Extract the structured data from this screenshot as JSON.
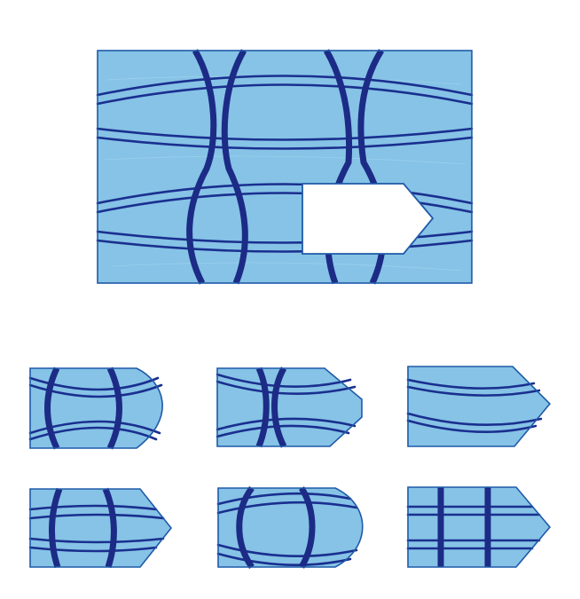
{
  "puzzle": {
    "main_panel": {
      "pattern": "crossing-wavy-lines",
      "missing_piece": "pentagon-arrow"
    },
    "options": [
      {
        "id": "option-1",
        "pattern": "vertical-bows-wave-horizontals"
      },
      {
        "id": "option-2",
        "pattern": "pinched-verticals-wave-horizontals"
      },
      {
        "id": "option-3",
        "pattern": "horizontals-only"
      },
      {
        "id": "option-4",
        "pattern": "bulging-verticals-wave-horizontals"
      },
      {
        "id": "option-5",
        "pattern": "barrel-verticals-wave-horizontals"
      },
      {
        "id": "option-6",
        "pattern": "straight-grid"
      }
    ]
  },
  "colors": {
    "panel_fill": "#86c3e6",
    "line_color": "#1c2b86",
    "border_color": "#1f5aa8",
    "background": "#ffffff"
  }
}
